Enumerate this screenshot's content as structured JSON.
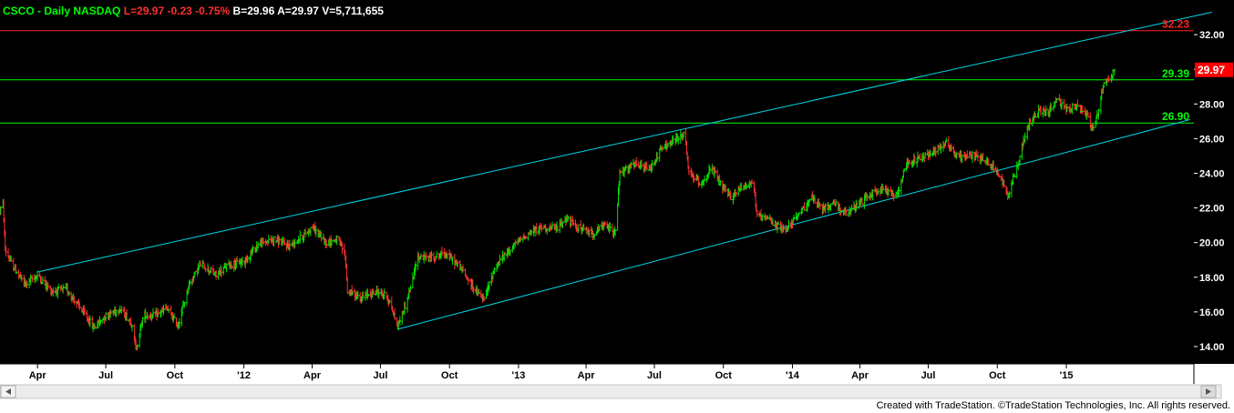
{
  "header": {
    "symbol": "CSCO",
    "interval": "Daily",
    "exchange": "NASDAQ",
    "last": "L=29.97",
    "change": "-0.23",
    "change_pct": "-0.75%",
    "bid": "B=29.96",
    "ask": "A=29.97",
    "volume": "V=5,711,655"
  },
  "footer": {
    "credit": "Created with TradeStation. ©TradeStation Technologies, Inc. All rights reserved."
  },
  "colors": {
    "background": "#000000",
    "chrome": "#ffffff",
    "up_bar": "#00e000",
    "down_bar": "#ff3030",
    "channel_line": "#00d8e8",
    "support_line": "#00ff00",
    "resistance_line": "#ff2020",
    "price_flag": "#ff0000",
    "symbol_text": "#00ff00",
    "negative_text": "#ff3030",
    "neutral_text": "#ffffff"
  },
  "chart_data": {
    "type": "ohlc",
    "title": "CSCO - Daily NASDAQ",
    "xlabel": "",
    "ylabel": "",
    "grid": false,
    "y_axis_position": "right",
    "ylim": [
      13.0,
      34.0
    ],
    "y_ticks": [
      "14.00",
      "16.00",
      "18.00",
      "20.00",
      "22.00",
      "24.00",
      "26.00",
      "28.00",
      "30.00",
      "32.00"
    ],
    "x_range": [
      "2011-02-10",
      "2015-06-20"
    ],
    "x_ticks": [
      {
        "label": "Apr",
        "date": "2011-04-01"
      },
      {
        "label": "Jul",
        "date": "2011-07-01"
      },
      {
        "label": "Oct",
        "date": "2011-10-01"
      },
      {
        "label": "'12",
        "date": "2012-01-01"
      },
      {
        "label": "Apr",
        "date": "2012-04-01"
      },
      {
        "label": "Jul",
        "date": "2012-07-01"
      },
      {
        "label": "Oct",
        "date": "2012-10-01"
      },
      {
        "label": "'13",
        "date": "2013-01-01"
      },
      {
        "label": "Apr",
        "date": "2013-04-01"
      },
      {
        "label": "Jul",
        "date": "2013-07-01"
      },
      {
        "label": "Oct",
        "date": "2013-10-01"
      },
      {
        "label": "'14",
        "date": "2014-01-01"
      },
      {
        "label": "Apr",
        "date": "2014-04-01"
      },
      {
        "label": "Jul",
        "date": "2014-07-01"
      },
      {
        "label": "Oct",
        "date": "2014-10-01"
      },
      {
        "label": "'15",
        "date": "2015-01-01"
      }
    ],
    "price_path": [
      [
        "2011-02-10",
        21.9
      ],
      [
        "2011-02-14",
        22.2
      ],
      [
        "2011-02-17",
        19.6
      ],
      [
        "2011-02-25",
        18.8
      ],
      [
        "2011-03-15",
        17.6
      ],
      [
        "2011-04-01",
        18.1
      ],
      [
        "2011-04-20",
        17.2
      ],
      [
        "2011-05-10",
        17.3
      ],
      [
        "2011-05-25",
        16.4
      ],
      [
        "2011-06-15",
        15.1
      ],
      [
        "2011-07-01",
        15.8
      ],
      [
        "2011-07-20",
        16.2
      ],
      [
        "2011-08-05",
        15.3
      ],
      [
        "2011-08-10",
        13.8
      ],
      [
        "2011-08-20",
        15.8
      ],
      [
        "2011-09-05",
        15.8
      ],
      [
        "2011-09-20",
        16.2
      ],
      [
        "2011-10-05",
        15.2
      ],
      [
        "2011-10-20",
        17.6
      ],
      [
        "2011-11-05",
        18.8
      ],
      [
        "2011-11-25",
        18.1
      ],
      [
        "2011-12-10",
        18.7
      ],
      [
        "2012-01-01",
        18.9
      ],
      [
        "2012-01-20",
        19.9
      ],
      [
        "2012-02-10",
        20.2
      ],
      [
        "2012-03-01",
        19.8
      ],
      [
        "2012-03-20",
        20.4
      ],
      [
        "2012-04-01",
        20.9
      ],
      [
        "2012-04-20",
        20.0
      ],
      [
        "2012-05-05",
        20.2
      ],
      [
        "2012-05-15",
        19.3
      ],
      [
        "2012-05-18",
        17.2
      ],
      [
        "2012-06-05",
        16.8
      ],
      [
        "2012-06-25",
        17.2
      ],
      [
        "2012-07-10",
        16.9
      ],
      [
        "2012-07-24",
        15.2
      ],
      [
        "2012-08-05",
        16.6
      ],
      [
        "2012-08-15",
        18.2
      ],
      [
        "2012-08-18",
        19.2
      ],
      [
        "2012-09-05",
        19.1
      ],
      [
        "2012-09-25",
        19.4
      ],
      [
        "2012-10-15",
        18.6
      ],
      [
        "2012-11-05",
        17.2
      ],
      [
        "2012-11-16",
        16.7
      ],
      [
        "2012-12-01",
        18.6
      ],
      [
        "2012-12-20",
        19.6
      ],
      [
        "2013-01-10",
        20.4
      ],
      [
        "2013-02-01",
        20.9
      ],
      [
        "2013-02-20",
        20.8
      ],
      [
        "2013-03-05",
        21.4
      ],
      [
        "2013-03-20",
        20.9
      ],
      [
        "2013-04-10",
        20.5
      ],
      [
        "2013-04-25",
        21.0
      ],
      [
        "2013-05-10",
        20.6
      ],
      [
        "2013-05-16",
        24.0
      ],
      [
        "2013-06-05",
        24.5
      ],
      [
        "2013-06-25",
        24.2
      ],
      [
        "2013-07-10",
        25.4
      ],
      [
        "2013-07-25",
        25.8
      ],
      [
        "2013-08-10",
        26.3
      ],
      [
        "2013-08-16",
        24.0
      ],
      [
        "2013-09-01",
        23.4
      ],
      [
        "2013-09-15",
        24.3
      ],
      [
        "2013-09-25",
        23.5
      ],
      [
        "2013-10-10",
        22.6
      ],
      [
        "2013-10-25",
        23.2
      ],
      [
        "2013-11-10",
        23.5
      ],
      [
        "2013-11-15",
        21.5
      ],
      [
        "2013-12-01",
        21.3
      ],
      [
        "2013-12-20",
        20.7
      ],
      [
        "2014-01-10",
        21.6
      ],
      [
        "2014-01-25",
        22.6
      ],
      [
        "2014-02-10",
        21.9
      ],
      [
        "2014-02-25",
        22.3
      ],
      [
        "2014-03-15",
        21.6
      ],
      [
        "2014-04-01",
        22.3
      ],
      [
        "2014-04-15",
        22.8
      ],
      [
        "2014-05-01",
        23.1
      ],
      [
        "2014-05-20",
        22.7
      ],
      [
        "2014-06-01",
        24.5
      ],
      [
        "2014-06-20",
        24.9
      ],
      [
        "2014-07-05",
        25.2
      ],
      [
        "2014-07-25",
        25.8
      ],
      [
        "2014-08-10",
        24.9
      ],
      [
        "2014-08-25",
        25.1
      ],
      [
        "2014-09-10",
        24.9
      ],
      [
        "2014-09-25",
        24.4
      ],
      [
        "2014-10-10",
        23.4
      ],
      [
        "2014-10-15",
        22.7
      ],
      [
        "2014-10-25",
        24.1
      ],
      [
        "2014-11-10",
        26.6
      ],
      [
        "2014-11-25",
        27.6
      ],
      [
        "2014-12-10",
        27.6
      ],
      [
        "2014-12-20",
        28.3
      ],
      [
        "2015-01-01",
        27.6
      ],
      [
        "2015-01-15",
        27.9
      ],
      [
        "2015-01-28",
        27.4
      ],
      [
        "2015-02-05",
        26.5
      ],
      [
        "2015-02-12",
        27.4
      ],
      [
        "2015-02-20",
        29.2
      ],
      [
        "2015-03-01",
        29.6
      ],
      [
        "2015-03-06",
        29.97
      ]
    ],
    "horizontal_lines": [
      {
        "label": "32.23",
        "value": 32.23,
        "role": "resistance"
      },
      {
        "label": "29.39",
        "value": 29.39,
        "role": "support"
      },
      {
        "label": "26.90",
        "value": 26.9,
        "role": "support"
      }
    ],
    "trendlines": [
      {
        "name": "channel-upper",
        "from": [
          "2011-04-01",
          18.3
        ],
        "to": [
          "2015-07-14",
          33.3
        ]
      },
      {
        "name": "channel-lower",
        "from": [
          "2012-07-24",
          15.0
        ],
        "to": [
          "2015-06-15",
          27.1
        ]
      }
    ],
    "last_price": {
      "label": "29.97",
      "value": 29.97
    }
  }
}
